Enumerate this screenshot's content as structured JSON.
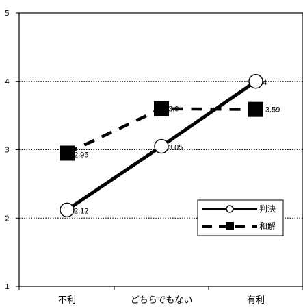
{
  "chart_data": {
    "type": "line",
    "categories": [
      "不利",
      "どちらでもない",
      "有利"
    ],
    "y_ticks": [
      "1",
      "2",
      "3",
      "4",
      "5"
    ],
    "ylim": [
      1,
      5
    ],
    "grid": "horizontal dotted",
    "legend_position": "bottom-right",
    "series": [
      {
        "name": "判決",
        "values": [
          2.12,
          3.05,
          4
        ],
        "labels": [
          "2.12",
          "3.05",
          "4"
        ],
        "style": "solid",
        "marker": "circle",
        "color": "#000000"
      },
      {
        "name": "和解",
        "values": [
          2.95,
          3.6,
          3.59
        ],
        "labels": [
          "2.95",
          "3.6",
          "3.59"
        ],
        "style": "dashed",
        "marker": "square",
        "color": "#000000"
      }
    ]
  }
}
